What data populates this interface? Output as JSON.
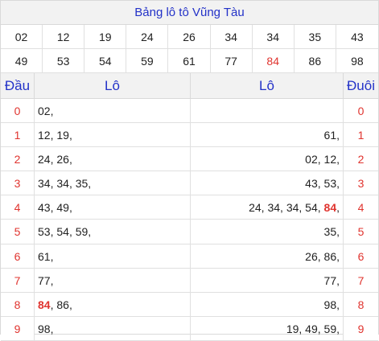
{
  "title": "Bảng lô tô Vũng Tàu",
  "numbers": [
    "02",
    "12",
    "19",
    "24",
    "26",
    "34",
    "34",
    "35",
    "43",
    "49",
    "53",
    "54",
    "59",
    "61",
    "77",
    "84",
    "86",
    "98"
  ],
  "highlight_number": "84",
  "headers": {
    "dau": "Đầu",
    "lo_left": "Lô",
    "lo_right": "Lô",
    "duoi": "Đuôi"
  },
  "rows": [
    {
      "dau": "0",
      "left": [
        "02"
      ],
      "right": [],
      "duoi": "0"
    },
    {
      "dau": "1",
      "left": [
        "12",
        "19"
      ],
      "right": [
        "61"
      ],
      "duoi": "1"
    },
    {
      "dau": "2",
      "left": [
        "24",
        "26"
      ],
      "right": [
        "02",
        "12"
      ],
      "duoi": "2"
    },
    {
      "dau": "3",
      "left": [
        "34",
        "34",
        "35"
      ],
      "right": [
        "43",
        "53"
      ],
      "duoi": "3"
    },
    {
      "dau": "4",
      "left": [
        "43",
        "49"
      ],
      "right": [
        "24",
        "34",
        "34",
        "54",
        "84"
      ],
      "duoi": "4"
    },
    {
      "dau": "5",
      "left": [
        "53",
        "54",
        "59"
      ],
      "right": [
        "35"
      ],
      "duoi": "5"
    },
    {
      "dau": "6",
      "left": [
        "61"
      ],
      "right": [
        "26",
        "86"
      ],
      "duoi": "6"
    },
    {
      "dau": "7",
      "left": [
        "77"
      ],
      "right": [
        "77"
      ],
      "duoi": "7"
    },
    {
      "dau": "8",
      "left": [
        "84",
        "86"
      ],
      "right": [
        "98"
      ],
      "duoi": "8"
    },
    {
      "dau": "9",
      "left": [
        "98"
      ],
      "right": [
        "19",
        "49",
        "59"
      ],
      "duoi": "9"
    }
  ],
  "colors": {
    "title": "#2332c8",
    "header": "#2332c8",
    "accent_red": "#e0342f"
  }
}
